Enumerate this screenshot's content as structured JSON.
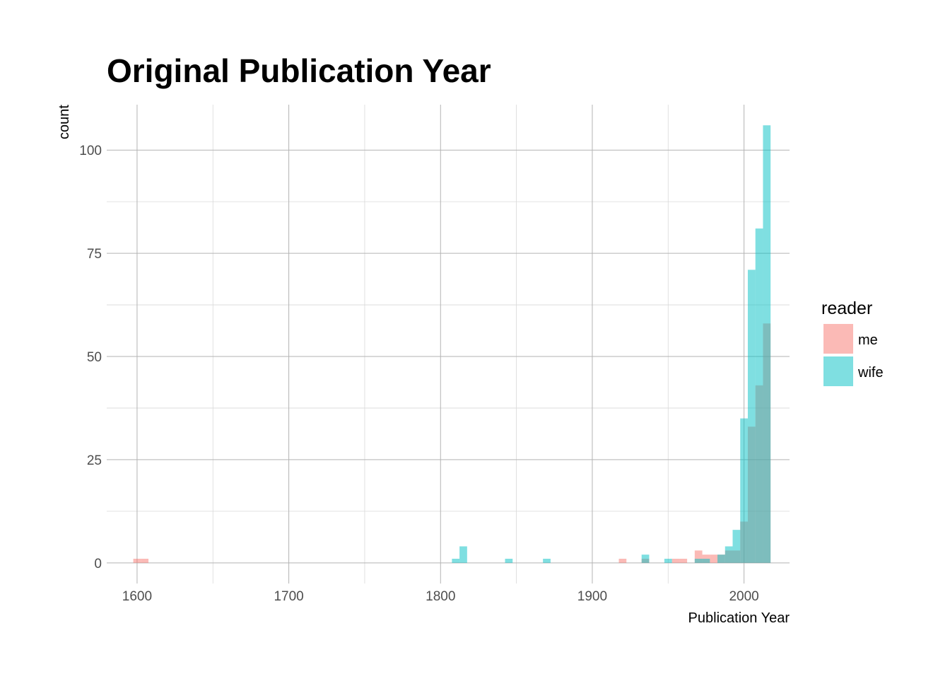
{
  "chart_data": {
    "type": "bar",
    "subtype": "overlapping-histogram",
    "title": "Original Publication Year",
    "xlabel": "Publication Year",
    "ylabel": "count",
    "xlim": [
      1580,
      2030
    ],
    "ylim": [
      -5,
      111
    ],
    "x_ticks": [
      1600,
      1700,
      1800,
      1900,
      2000
    ],
    "x_minor": [
      1650,
      1750,
      1850,
      1950
    ],
    "y_ticks": [
      0,
      25,
      50,
      75,
      100
    ],
    "y_minor": [
      12.5,
      37.5,
      62.5,
      87.5
    ],
    "grid": true,
    "bin_width": 5,
    "legend": {
      "title": "reader",
      "position": "right",
      "entries": [
        {
          "label": "me",
          "color": "#F8766D"
        },
        {
          "label": "wife",
          "color": "#00BFC4"
        }
      ]
    },
    "series": [
      {
        "name": "me",
        "color": "#F8766D",
        "bins": [
          {
            "x": 1600,
            "count": 1
          },
          {
            "x": 1605,
            "count": 1
          },
          {
            "x": 1920,
            "count": 1
          },
          {
            "x": 1935,
            "count": 1
          },
          {
            "x": 1955,
            "count": 1
          },
          {
            "x": 1960,
            "count": 1
          },
          {
            "x": 1970,
            "count": 3
          },
          {
            "x": 1975,
            "count": 2
          },
          {
            "x": 1980,
            "count": 2
          },
          {
            "x": 1985,
            "count": 2
          },
          {
            "x": 1990,
            "count": 3
          },
          {
            "x": 1995,
            "count": 3
          },
          {
            "x": 2000,
            "count": 10
          },
          {
            "x": 2005,
            "count": 33
          },
          {
            "x": 2010,
            "count": 43
          },
          {
            "x": 2015,
            "count": 58
          }
        ]
      },
      {
        "name": "wife",
        "color": "#00BFC4",
        "bins": [
          {
            "x": 1810,
            "count": 1
          },
          {
            "x": 1815,
            "count": 4
          },
          {
            "x": 1845,
            "count": 1
          },
          {
            "x": 1870,
            "count": 1
          },
          {
            "x": 1935,
            "count": 2
          },
          {
            "x": 1950,
            "count": 1
          },
          {
            "x": 1970,
            "count": 1
          },
          {
            "x": 1975,
            "count": 1
          },
          {
            "x": 1985,
            "count": 2
          },
          {
            "x": 1990,
            "count": 4
          },
          {
            "x": 1995,
            "count": 8
          },
          {
            "x": 2000,
            "count": 35
          },
          {
            "x": 2005,
            "count": 71
          },
          {
            "x": 2010,
            "count": 81
          },
          {
            "x": 2015,
            "count": 106
          }
        ]
      }
    ]
  }
}
